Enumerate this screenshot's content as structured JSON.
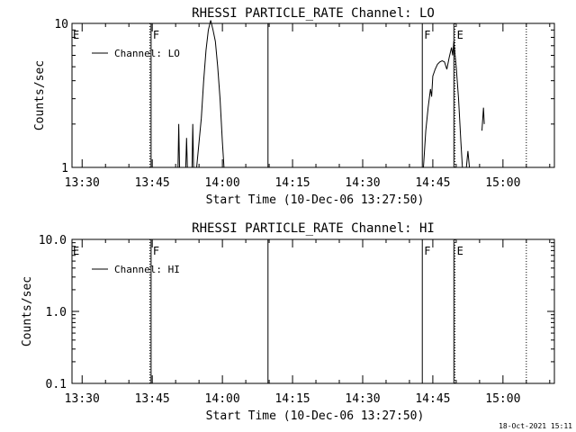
{
  "footer": {
    "timestamp": "18-Oct-2021 15:11"
  },
  "chart_data": [
    {
      "type": "line",
      "title": "RHESSI PARTICLE_RATE Channel: LO",
      "xlabel": "Start Time (10-Dec-06 13:27:50)",
      "ylabel": "Counts/sec",
      "yscale": "log",
      "xlim": [
        "13:27:50",
        "15:11:00"
      ],
      "ylim": [
        1,
        10
      ],
      "x_ticks": [
        "13:30",
        "13:45",
        "14:00",
        "14:15",
        "14:30",
        "14:45",
        "15:00"
      ],
      "y_ticks": [
        "1",
        "10"
      ],
      "legend": {
        "entries": [
          "Channel: LO"
        ],
        "position": "top-left"
      },
      "vlines": [
        {
          "x": "13:44:30",
          "style": "dotted"
        },
        {
          "x": "13:44:45",
          "style": "solid",
          "label": "F"
        },
        {
          "x": "14:09:45",
          "style": "solid"
        },
        {
          "x": "14:42:45",
          "style": "solid",
          "label": "F"
        },
        {
          "x": "14:49:30",
          "style": "solid"
        },
        {
          "x": "14:49:45",
          "style": "dotted",
          "label": "E"
        },
        {
          "x": "15:05:00",
          "style": "dotted"
        }
      ],
      "edge_labels": [
        {
          "x": "13:27:50",
          "label": "E"
        }
      ],
      "series": [
        {
          "name": "Channel: LO",
          "segments": [
            [
              [
                "13:50:30",
                1
              ],
              [
                "13:50:40",
                2.0
              ],
              [
                "13:50:50",
                1
              ]
            ],
            [
              [
                "13:52:10",
                1
              ],
              [
                "13:52:20",
                1.6
              ],
              [
                "13:52:30",
                1
              ]
            ],
            [
              [
                "13:53:30",
                1
              ],
              [
                "13:53:40",
                2.0
              ],
              [
                "13:53:50",
                1
              ]
            ],
            [
              [
                "13:54:30",
                1
              ],
              [
                "13:55:30",
                2.2
              ],
              [
                "13:56:00",
                4.0
              ],
              [
                "13:56:30",
                6.5
              ],
              [
                "13:57:00",
                9.0
              ],
              [
                "13:57:30",
                10.5
              ],
              [
                "13:58:00",
                9.0
              ],
              [
                "13:58:30",
                7.5
              ],
              [
                "13:59:00",
                5.0
              ],
              [
                "13:59:30",
                3.0
              ],
              [
                "14:00:00",
                1.5
              ],
              [
                "14:00:20",
                1
              ]
            ],
            [
              [
                "14:43:00",
                1
              ],
              [
                "14:43:30",
                1.8
              ],
              [
                "14:44:00",
                2.6
              ],
              [
                "14:44:30",
                3.5
              ],
              [
                "14:44:45",
                3.1
              ],
              [
                "14:45:00",
                4.3
              ],
              [
                "14:45:30",
                4.8
              ],
              [
                "14:46:00",
                5.2
              ],
              [
                "14:46:30",
                5.4
              ],
              [
                "14:47:00",
                5.5
              ],
              [
                "14:47:30",
                5.4
              ],
              [
                "14:48:00",
                4.8
              ],
              [
                "14:48:30",
                5.8
              ],
              [
                "14:49:00",
                6.8
              ],
              [
                "14:49:15",
                6.0
              ],
              [
                "14:49:30",
                7.5
              ],
              [
                "14:50:00",
                5.0
              ],
              [
                "14:50:30",
                3.0
              ],
              [
                "14:51:00",
                1.5
              ],
              [
                "14:51:20",
                1
              ]
            ],
            [
              [
                "14:52:10",
                1
              ],
              [
                "14:52:30",
                1.3
              ],
              [
                "14:52:50",
                1
              ]
            ],
            [
              [
                "14:55:30",
                1.8
              ],
              [
                "14:55:50",
                2.6
              ],
              [
                "14:56:00",
                2.0
              ]
            ]
          ]
        }
      ]
    },
    {
      "type": "line",
      "title": "RHESSI PARTICLE_RATE Channel: HI",
      "xlabel": "Start Time (10-Dec-06 13:27:50)",
      "ylabel": "Counts/sec",
      "yscale": "log",
      "xlim": [
        "13:27:50",
        "15:11:00"
      ],
      "ylim": [
        0.1,
        10
      ],
      "x_ticks": [
        "13:30",
        "13:45",
        "14:00",
        "14:15",
        "14:30",
        "14:45",
        "15:00"
      ],
      "y_ticks": [
        "0.1",
        "1.0",
        "10.0"
      ],
      "legend": {
        "entries": [
          "Channel: HI"
        ],
        "position": "top-left"
      },
      "vlines": [
        {
          "x": "13:44:30",
          "style": "dotted"
        },
        {
          "x": "13:44:45",
          "style": "solid",
          "label": "F"
        },
        {
          "x": "14:09:45",
          "style": "solid"
        },
        {
          "x": "14:42:45",
          "style": "solid",
          "label": "F"
        },
        {
          "x": "14:49:30",
          "style": "solid"
        },
        {
          "x": "14:49:45",
          "style": "dotted",
          "label": "E"
        },
        {
          "x": "15:05:00",
          "style": "dotted"
        }
      ],
      "edge_labels": [
        {
          "x": "13:27:50",
          "label": "E"
        }
      ],
      "series": [
        {
          "name": "Channel: HI",
          "segments": []
        }
      ]
    }
  ]
}
